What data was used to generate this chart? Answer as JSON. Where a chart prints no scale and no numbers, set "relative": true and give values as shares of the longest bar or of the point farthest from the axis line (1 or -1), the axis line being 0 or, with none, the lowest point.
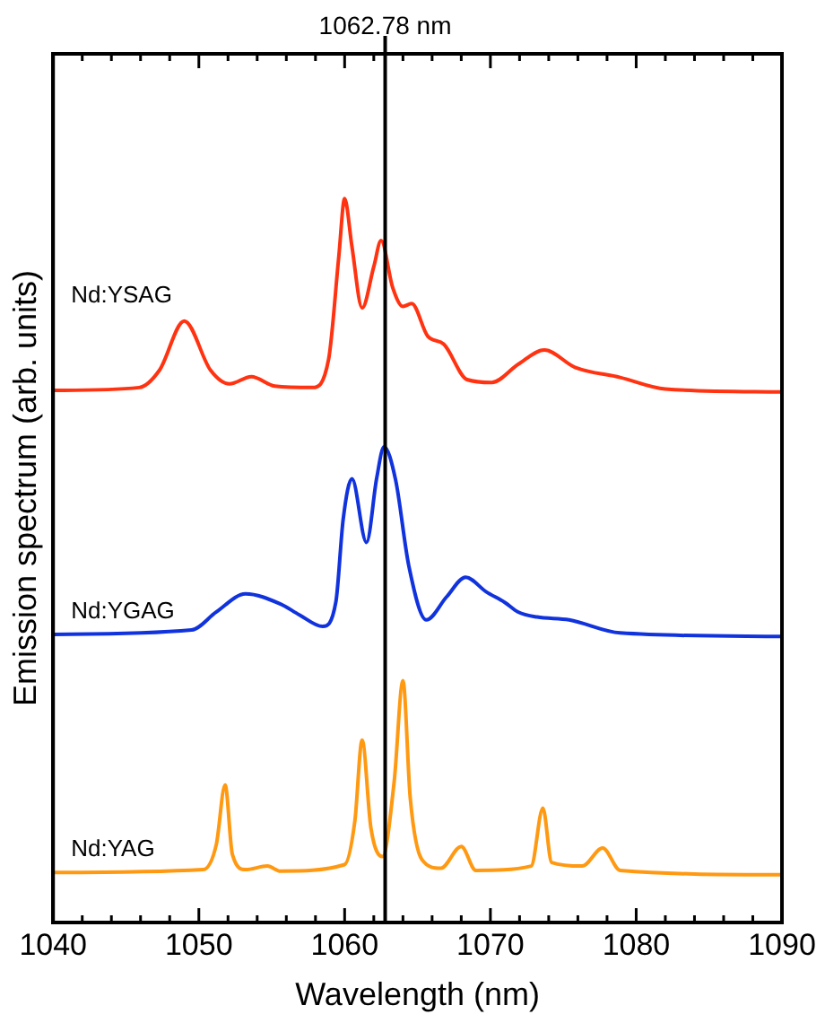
{
  "chart_data": {
    "type": "line",
    "relative": true,
    "xlabel": "Wavelength (nm)",
    "ylabel": "Emission spectrum (arb. units)",
    "xlim": [
      1040,
      1090
    ],
    "xticks": [
      1040,
      1050,
      1060,
      1070,
      1080,
      1090
    ],
    "grid": false,
    "legend": false,
    "marker": "none",
    "line_style": "solid",
    "ref_lines": [
      {
        "axis": "x",
        "value": 1062.78,
        "label": "1062.78 nm",
        "color": "#000000"
      }
    ],
    "series": [
      {
        "name": "Nd:YSAG",
        "color": "#ff3311",
        "x": [
          1040,
          1045.9,
          1047.3,
          1049.0,
          1050.8,
          1052.1,
          1053.6,
          1055.2,
          1057.8,
          1058.9,
          1059.6,
          1060.0,
          1060.5,
          1061.2,
          1062.0,
          1062.5,
          1063.3,
          1064.0,
          1064.6,
          1065.7,
          1066.8,
          1068.4,
          1070.1,
          1071.9,
          1073.7,
          1075.8,
          1078.9,
          1082.0,
          1089.9
        ],
        "values": [
          0.735,
          0.739,
          0.763,
          0.831,
          0.763,
          0.744,
          0.754,
          0.741,
          0.739,
          0.778,
          0.92,
          1.0,
          0.934,
          0.849,
          0.906,
          0.942,
          0.877,
          0.851,
          0.855,
          0.81,
          0.799,
          0.75,
          0.746,
          0.771,
          0.791,
          0.767,
          0.753,
          0.737,
          0.733
        ]
      },
      {
        "name": "Nd:YGAG",
        "color": "#1133dd",
        "x": [
          1040,
          1049.5,
          1051.2,
          1053.2,
          1055.6,
          1056.9,
          1058.5,
          1059.4,
          1059.9,
          1060.5,
          1061.5,
          1062.2,
          1062.7,
          1063.5,
          1064.4,
          1065.6,
          1067.0,
          1068.3,
          1069.7,
          1071.0,
          1071.9,
          1073.2,
          1075.4,
          1078.9,
          1089.9
        ],
        "values": [
          0.398,
          0.404,
          0.429,
          0.454,
          0.44,
          0.425,
          0.409,
          0.443,
          0.557,
          0.613,
          0.525,
          0.614,
          0.657,
          0.611,
          0.493,
          0.418,
          0.45,
          0.477,
          0.457,
          0.442,
          0.429,
          0.422,
          0.418,
          0.4,
          0.395
        ]
      },
      {
        "name": "Nd:YAG",
        "color": "#ff9911",
        "x": [
          1040,
          1050.3,
          1051.2,
          1051.8,
          1052.3,
          1053.2,
          1054.7,
          1055.6,
          1060.0,
          1060.7,
          1061.2,
          1061.8,
          1062.6,
          1063.4,
          1064.0,
          1064.5,
          1065.3,
          1066.6,
          1068.0,
          1069.0,
          1072.8,
          1073.6,
          1074.2,
          1076.3,
          1077.7,
          1078.9,
          1089.9
        ],
        "values": [
          0.069,
          0.073,
          0.108,
          0.19,
          0.094,
          0.073,
          0.078,
          0.071,
          0.08,
          0.14,
          0.252,
          0.131,
          0.091,
          0.195,
          0.334,
          0.172,
          0.087,
          0.075,
          0.105,
          0.072,
          0.078,
          0.158,
          0.083,
          0.078,
          0.103,
          0.072,
          0.066
        ]
      }
    ]
  }
}
